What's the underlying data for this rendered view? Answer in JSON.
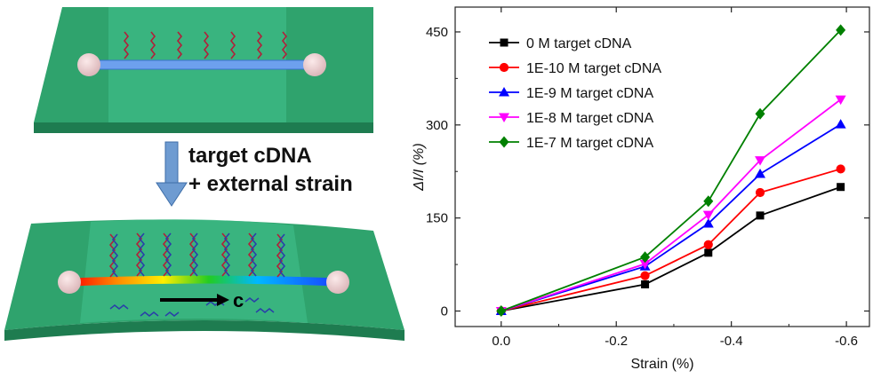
{
  "annotation": {
    "line1": "target cDNA",
    "line2": "+ external strain",
    "c_label": "c"
  },
  "chart_data": {
    "type": "line",
    "title": "",
    "xlabel": "Strain (%)",
    "ylabel": "ΔI/I (%)",
    "xlim": [
      0.08,
      -0.64
    ],
    "ylim": [
      -25,
      490
    ],
    "xticks": [
      0.0,
      -0.2,
      -0.4,
      -0.6
    ],
    "xtick_labels": [
      "0.0",
      "-0.2",
      "-0.4",
      "-0.6"
    ],
    "yticks": [
      0,
      150,
      300,
      450
    ],
    "ytick_labels": [
      "0",
      "150",
      "300",
      "450"
    ],
    "x": [
      0.0,
      -0.25,
      -0.36,
      -0.45,
      -0.59
    ],
    "legend_position": "top-left",
    "series": [
      {
        "name": "0 M target cDNA",
        "color": "#000000",
        "marker": "square",
        "values": [
          0,
          43,
          94,
          154,
          200
        ]
      },
      {
        "name": "1E-10 M target cDNA",
        "color": "#ff0000",
        "marker": "circle",
        "values": [
          0,
          57,
          107,
          191,
          229
        ]
      },
      {
        "name": "1E-9 M target cDNA",
        "color": "#0000ff",
        "marker": "triangle-up",
        "values": [
          0,
          72,
          141,
          221,
          301
        ]
      },
      {
        "name": "1E-8 M target cDNA",
        "color": "#ff00ff",
        "marker": "triangle-down",
        "values": [
          0,
          76,
          155,
          243,
          341
        ]
      },
      {
        "name": "1E-7 M target cDNA",
        "color": "#008000",
        "marker": "diamond",
        "values": [
          0,
          87,
          177,
          318,
          453
        ]
      }
    ]
  }
}
